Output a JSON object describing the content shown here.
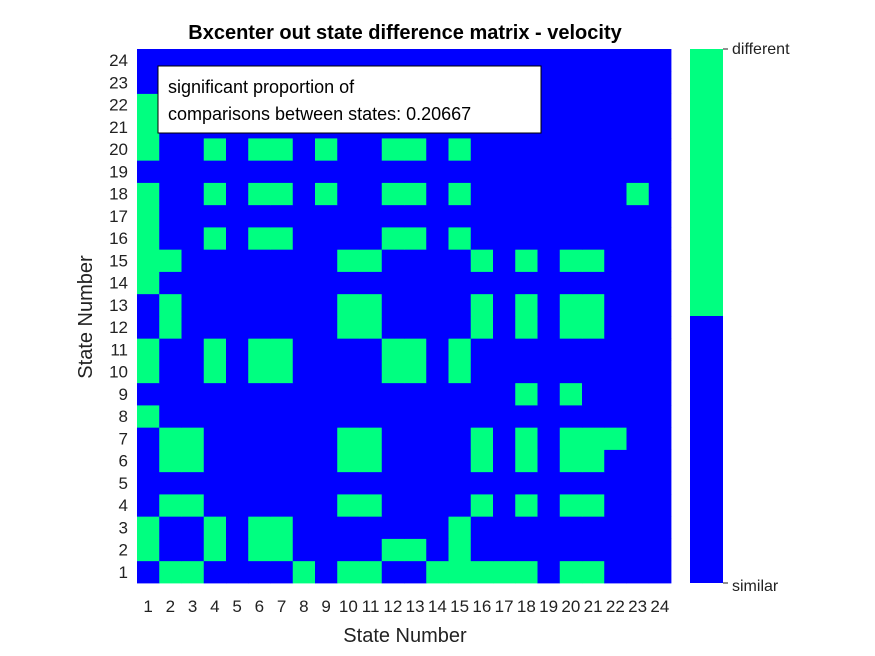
{
  "chart_data": {
    "type": "heatmap",
    "title": "Bxcenter out state difference matrix - velocity",
    "xlabel": "State Number",
    "ylabel": "State Number",
    "x_ticks": [
      "1",
      "2",
      "3",
      "4",
      "5",
      "6",
      "7",
      "8",
      "9",
      "10",
      "11",
      "12",
      "13",
      "14",
      "15",
      "16",
      "17",
      "18",
      "19",
      "20",
      "21",
      "22",
      "23",
      "24"
    ],
    "y_ticks": [
      "1",
      "2",
      "3",
      "4",
      "5",
      "6",
      "7",
      "8",
      "9",
      "10",
      "11",
      "12",
      "13",
      "14",
      "15",
      "16",
      "17",
      "18",
      "19",
      "20",
      "21",
      "22",
      "23",
      "24"
    ],
    "colorbar": {
      "labels": [
        "similar",
        "different"
      ],
      "colors": {
        "similar": "#0000ff",
        "different": "#00ff80"
      }
    },
    "annotation": {
      "line1": "significant proportion of",
      "line2": "comparisons between states: 0.20667"
    },
    "value_legend": {
      "0": "similar",
      "1": "different"
    },
    "matrix_note": "rows listed from state 1 (bottom) to state 24 (top); columns state 1..24",
    "values": [
      [
        1,
        0,
        0,
        1,
        1,
        1,
        1,
        0,
        1,
        0,
        0,
        1,
        1,
        0,
        0,
        0,
        0,
        0,
        1,
        0,
        0,
        1,
        1,
        1
      ],
      [
        0,
        1,
        1,
        0,
        1,
        0,
        0,
        1,
        1,
        1,
        1,
        0,
        0,
        1,
        0,
        1,
        1,
        1,
        1,
        1,
        1,
        1,
        1,
        1
      ],
      [
        0,
        1,
        1,
        0,
        1,
        0,
        0,
        1,
        1,
        1,
        1,
        1,
        1,
        1,
        0,
        1,
        1,
        1,
        1,
        1,
        1,
        1,
        1,
        1
      ],
      [
        1,
        0,
        0,
        1,
        1,
        1,
        1,
        1,
        1,
        0,
        0,
        1,
        1,
        1,
        1,
        0,
        1,
        0,
        1,
        0,
        0,
        1,
        1,
        1
      ],
      [
        1,
        1,
        1,
        1,
        1,
        1,
        1,
        1,
        1,
        1,
        1,
        1,
        1,
        1,
        1,
        1,
        1,
        1,
        1,
        1,
        1,
        1,
        1,
        1
      ],
      [
        1,
        0,
        0,
        1,
        1,
        1,
        1,
        1,
        1,
        0,
        0,
        1,
        1,
        1,
        1,
        0,
        1,
        0,
        1,
        0,
        0,
        1,
        1,
        1
      ],
      [
        1,
        0,
        0,
        1,
        1,
        1,
        1,
        1,
        1,
        0,
        0,
        1,
        1,
        1,
        1,
        0,
        1,
        0,
        1,
        0,
        0,
        0,
        1,
        1
      ],
      [
        0,
        1,
        1,
        1,
        1,
        1,
        1,
        1,
        1,
        1,
        1,
        1,
        1,
        1,
        1,
        1,
        1,
        1,
        1,
        1,
        1,
        1,
        1,
        1
      ],
      [
        1,
        1,
        1,
        1,
        1,
        1,
        1,
        1,
        1,
        1,
        1,
        1,
        1,
        1,
        1,
        1,
        1,
        0,
        1,
        0,
        1,
        1,
        1,
        1
      ],
      [
        0,
        1,
        1,
        0,
        1,
        0,
        0,
        1,
        1,
        1,
        1,
        0,
        0,
        1,
        0,
        1,
        1,
        1,
        1,
        1,
        1,
        1,
        1,
        1
      ],
      [
        0,
        1,
        1,
        0,
        1,
        0,
        0,
        1,
        1,
        1,
        1,
        0,
        0,
        1,
        0,
        1,
        1,
        1,
        1,
        1,
        1,
        1,
        1,
        1
      ],
      [
        1,
        0,
        1,
        1,
        1,
        1,
        1,
        1,
        1,
        0,
        0,
        1,
        1,
        1,
        1,
        0,
        1,
        0,
        1,
        0,
        0,
        1,
        1,
        1
      ],
      [
        1,
        0,
        1,
        1,
        1,
        1,
        1,
        1,
        1,
        0,
        0,
        1,
        1,
        1,
        1,
        0,
        1,
        0,
        1,
        0,
        0,
        1,
        1,
        1
      ],
      [
        0,
        1,
        1,
        1,
        1,
        1,
        1,
        1,
        1,
        1,
        1,
        1,
        1,
        1,
        1,
        1,
        1,
        1,
        1,
        1,
        1,
        1,
        1,
        1
      ],
      [
        0,
        0,
        1,
        1,
        1,
        1,
        1,
        1,
        1,
        0,
        0,
        1,
        1,
        1,
        1,
        0,
        1,
        0,
        1,
        0,
        0,
        1,
        1,
        1
      ],
      [
        0,
        1,
        1,
        0,
        1,
        0,
        0,
        1,
        1,
        1,
        1,
        0,
        0,
        1,
        0,
        1,
        1,
        1,
        1,
        1,
        1,
        1,
        1,
        1
      ],
      [
        0,
        1,
        1,
        1,
        1,
        1,
        1,
        1,
        1,
        1,
        1,
        1,
        1,
        1,
        1,
        1,
        1,
        1,
        1,
        1,
        1,
        1,
        1,
        1
      ],
      [
        0,
        1,
        1,
        0,
        1,
        0,
        0,
        1,
        0,
        1,
        1,
        0,
        0,
        1,
        0,
        1,
        1,
        1,
        1,
        1,
        1,
        1,
        0,
        1
      ],
      [
        1,
        1,
        1,
        1,
        1,
        1,
        1,
        1,
        1,
        1,
        1,
        1,
        1,
        1,
        1,
        1,
        1,
        1,
        1,
        1,
        1,
        1,
        1,
        1
      ],
      [
        0,
        1,
        1,
        0,
        1,
        0,
        0,
        1,
        0,
        1,
        1,
        0,
        0,
        1,
        0,
        1,
        1,
        1,
        1,
        1,
        1,
        1,
        1,
        1
      ],
      [
        0,
        1,
        1,
        1,
        1,
        1,
        1,
        1,
        1,
        1,
        1,
        1,
        1,
        1,
        1,
        1,
        1,
        1,
        1,
        1,
        1,
        1,
        1,
        1
      ],
      [
        0,
        1,
        1,
        1,
        1,
        1,
        1,
        1,
        1,
        1,
        1,
        1,
        1,
        1,
        1,
        1,
        1,
        1,
        1,
        1,
        1,
        1,
        1,
        1
      ],
      [
        1,
        1,
        1,
        1,
        1,
        1,
        1,
        1,
        1,
        1,
        1,
        1,
        1,
        1,
        1,
        1,
        1,
        1,
        1,
        1,
        1,
        1,
        1,
        1
      ],
      [
        1,
        1,
        1,
        1,
        1,
        1,
        1,
        1,
        1,
        1,
        1,
        1,
        1,
        1,
        1,
        1,
        1,
        1,
        1,
        1,
        1,
        1,
        1,
        1
      ]
    ]
  }
}
